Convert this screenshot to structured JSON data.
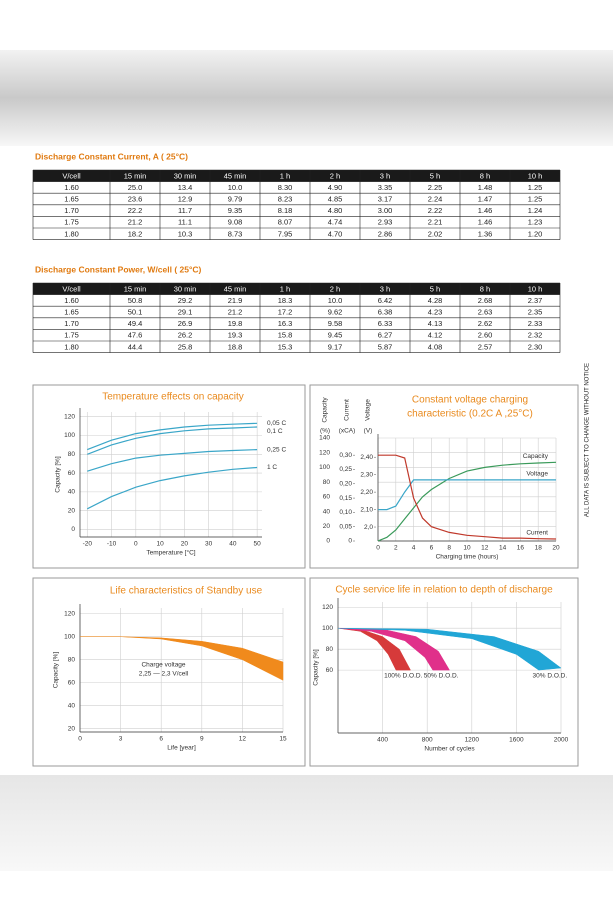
{
  "note": "ALL DATA IS SUBJECT TO CHANGE WITHOUT NOTICE",
  "tables": [
    {
      "title": "Discharge Constant Current, A ( 25°C)",
      "header": [
        "V/cell",
        "15 min",
        "30 min",
        "45 min",
        "1 h",
        "2 h",
        "3 h",
        "5 h",
        "8 h",
        "10 h"
      ],
      "rows": [
        [
          "1.60",
          "25.0",
          "13.4",
          "10.0",
          "8.30",
          "4.90",
          "3.35",
          "2.25",
          "1.48",
          "1.25"
        ],
        [
          "1.65",
          "23.6",
          "12.9",
          "9.79",
          "8.23",
          "4.85",
          "3.17",
          "2.24",
          "1.47",
          "1.25"
        ],
        [
          "1.70",
          "22.2",
          "11.7",
          "9.35",
          "8.18",
          "4.80",
          "3.00",
          "2.22",
          "1.46",
          "1.24"
        ],
        [
          "1.75",
          "21.2",
          "11.1",
          "9.08",
          "8.07",
          "4.74",
          "2.93",
          "2.21",
          "1.46",
          "1.23"
        ],
        [
          "1.80",
          "18.2",
          "10.3",
          "8.73",
          "7.95",
          "4.70",
          "2.86",
          "2.02",
          "1.36",
          "1.20"
        ]
      ]
    },
    {
      "title": "Discharge Constant Power, W/cell ( 25°C)",
      "header": [
        "V/cell",
        "15 min",
        "30 min",
        "45 min",
        "1 h",
        "2 h",
        "3 h",
        "5 h",
        "8 h",
        "10 h"
      ],
      "rows": [
        [
          "1.60",
          "50.8",
          "29.2",
          "21.9",
          "18.3",
          "10.0",
          "6.42",
          "4.28",
          "2.68",
          "2.37"
        ],
        [
          "1.65",
          "50.1",
          "29.1",
          "21.2",
          "17.2",
          "9.62",
          "6.38",
          "4.23",
          "2.63",
          "2.35"
        ],
        [
          "1.70",
          "49.4",
          "26.9",
          "19.8",
          "16.3",
          "9.58",
          "6.33",
          "4.13",
          "2.62",
          "2.33"
        ],
        [
          "1.75",
          "47.6",
          "26.2",
          "19.3",
          "15.8",
          "9.45",
          "6.27",
          "4.12",
          "2.60",
          "2.32"
        ],
        [
          "1.80",
          "44.4",
          "25.8",
          "18.8",
          "15.3",
          "9.17",
          "5.87",
          "4.08",
          "2.57",
          "2.30"
        ]
      ]
    }
  ],
  "chart_data": [
    {
      "type": "line",
      "title": [
        "Temperature effects on capacity"
      ],
      "x_label": "Temperature [°C]",
      "y_label": "Capacity [%]",
      "x": [
        -20,
        -10,
        0,
        10,
        20,
        30,
        40,
        50
      ],
      "xlim": [
        -23,
        52
      ],
      "xticks": [
        -20,
        -10,
        0,
        10,
        20,
        30,
        40,
        50
      ],
      "ylim": [
        -8,
        125
      ],
      "yticks": [
        0,
        20,
        40,
        60,
        80,
        100,
        120
      ],
      "grid": true,
      "series": [
        {
          "name": "0,05 C",
          "color": "#3aa6c8",
          "values": [
            85,
            95,
            102,
            106,
            109,
            111,
            112,
            113
          ]
        },
        {
          "name": "0,1 C",
          "color": "#3aa6c8",
          "values": [
            80,
            90,
            97,
            102,
            105,
            107,
            108,
            109
          ]
        },
        {
          "name": "0,25 C",
          "color": "#3aa6c8",
          "values": [
            62,
            70,
            76,
            79,
            81,
            83,
            84,
            85
          ]
        },
        {
          "name": "1 C",
          "color": "#3aa6c8",
          "values": [
            22,
            35,
            45,
            52,
            57,
            61,
            64,
            66
          ]
        }
      ]
    },
    {
      "type": "multiaxis",
      "title": [
        "Constant voltage charging",
        "characteristic (0.2C A ,25°C)"
      ],
      "x_label": "Charging time (hours)",
      "y_label": "Capacity",
      "y_unit": "(%)",
      "y2_label": "Current",
      "y2_unit": "(xCA)",
      "y3_label": "Voltage",
      "y3_unit": "(V)",
      "x": [
        0,
        1,
        2,
        3,
        4,
        5,
        6,
        8,
        10,
        12,
        14,
        16,
        18,
        20
      ],
      "xlim": [
        0,
        20
      ],
      "xticks": [
        0,
        2,
        4,
        6,
        8,
        10,
        12,
        14,
        16,
        18,
        20
      ],
      "ylim": [
        0,
        140
      ],
      "yticks": [
        0,
        20,
        40,
        60,
        80,
        100,
        120,
        140
      ],
      "y2lim": [
        0,
        0.36
      ],
      "y2ticks": [
        0,
        {
          "value": 0.05,
          "label": "0,05"
        },
        {
          "value": 0.1,
          "label": "0,10"
        },
        {
          "value": 0.15,
          "label": "0,15"
        },
        {
          "value": 0.2,
          "label": "0,20"
        },
        {
          "value": 0.25,
          "label": "0,25"
        },
        {
          "value": 0.3,
          "label": "0,30"
        }
      ],
      "y3lim": [
        1.92,
        2.51
      ],
      "y3ticks": [
        {
          "value": 2.0,
          "label": "2,0"
        },
        {
          "value": 2.1,
          "label": "2,10"
        },
        {
          "value": 2.2,
          "label": "2,20"
        },
        {
          "value": 2.3,
          "label": "2,30"
        },
        {
          "value": 2.4,
          "label": "2,40"
        }
      ],
      "grid": true,
      "series": [
        {
          "name": "Capacity",
          "color": "#3a9a5a",
          "axis": "y",
          "values": [
            0,
            5,
            15,
            30,
            45,
            60,
            70,
            85,
            95,
            100,
            103,
            105,
            106,
            107
          ]
        },
        {
          "name": "Voltage",
          "color": "#3aa6c8",
          "axis": "y3",
          "values": [
            2.1,
            2.1,
            2.12,
            2.2,
            2.27,
            2.27,
            2.27,
            2.27,
            2.27,
            2.27,
            2.27,
            2.27,
            2.27,
            2.27
          ]
        },
        {
          "name": "Current",
          "color": "#c0392b",
          "axis": "y2",
          "values": [
            0.3,
            0.3,
            0.3,
            0.29,
            0.15,
            0.08,
            0.05,
            0.03,
            0.02,
            0.015,
            0.01,
            0.01,
            0.008,
            0.007
          ]
        }
      ]
    },
    {
      "type": "band",
      "title": [
        "Life characteristics of Standby use"
      ],
      "x_label": "Life [year]",
      "y_label": "Capacity [%]",
      "annotation": [
        "Charge voltage",
        "2,25 — 2,3 V/cell"
      ],
      "xlim": [
        0,
        15
      ],
      "xticks": [
        0,
        3,
        6,
        9,
        12,
        15
      ],
      "ylim": [
        17,
        125
      ],
      "yticks": [
        20,
        40,
        60,
        80,
        100,
        120
      ],
      "grid": true,
      "series": [
        {
          "color": "#f08a1c",
          "upper_x": [
            0,
            3,
            6,
            9,
            12,
            15
          ],
          "upper": [
            100,
            100,
            99,
            96,
            90,
            78
          ],
          "lower_x": [
            0,
            3,
            6,
            9,
            12,
            15
          ],
          "lower": [
            100,
            100,
            98,
            92,
            80,
            62
          ]
        }
      ]
    },
    {
      "type": "band",
      "title": [
        "Cycle service life in relation to depth of discharge"
      ],
      "x_label": "Number of cycles",
      "y_label": "Capacity [%]",
      "xlim": [
        0,
        2000
      ],
      "xticks": [
        400,
        800,
        1200,
        1600,
        2000
      ],
      "ylim": [
        0,
        125
      ],
      "yticks": [
        60,
        80,
        100,
        120
      ],
      "grid": true,
      "series": [
        {
          "name": "100% D.O.D.",
          "color": "#d63a3a",
          "upper_x": [
            0,
            200,
            400,
            550,
            650
          ],
          "upper": [
            100,
            99,
            92,
            80,
            60
          ],
          "lower_x": [
            0,
            200,
            350,
            450,
            520
          ],
          "lower": [
            100,
            97,
            88,
            75,
            60
          ]
        },
        {
          "name": "50% D.O.D.",
          "color": "#e0308a",
          "upper_x": [
            0,
            400,
            700,
            900,
            1000
          ],
          "upper": [
            100,
            99,
            92,
            78,
            60
          ],
          "lower_x": [
            0,
            300,
            600,
            780,
            850
          ],
          "lower": [
            100,
            97,
            88,
            72,
            60
          ]
        },
        {
          "name": "30% D.O.D.",
          "color": "#21a6d6",
          "upper_x": [
            0,
            800,
            1400,
            1800,
            2000
          ],
          "upper": [
            100,
            99,
            92,
            78,
            62
          ],
          "lower_x": [
            0,
            600,
            1200,
            1600,
            1800
          ],
          "lower": [
            100,
            98,
            90,
            75,
            60
          ]
        }
      ]
    }
  ]
}
